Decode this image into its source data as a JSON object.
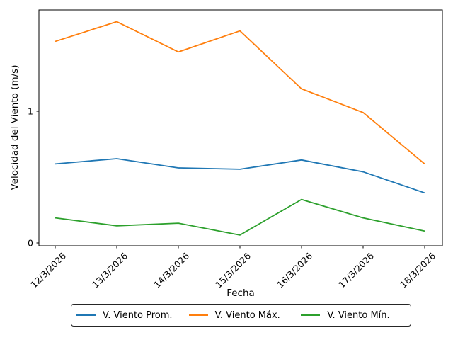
{
  "chart_data": {
    "type": "line",
    "title": "",
    "xlabel": "Fecha",
    "ylabel": "Velocidad del Viento (m/s)",
    "categories": [
      "12/3/2026",
      "13/3/2026",
      "14/3/2026",
      "15/3/2026",
      "16/3/2026",
      "17/3/2026",
      "18/3/2026"
    ],
    "series": [
      {
        "name": "V. Viento Prom.",
        "color": "#1f77b4",
        "values": [
          0.6,
          0.64,
          0.57,
          0.56,
          0.63,
          0.54,
          0.38
        ]
      },
      {
        "name": "V. Viento Máx.",
        "color": "#ff7f0e",
        "values": [
          1.53,
          1.68,
          1.45,
          1.61,
          1.17,
          0.99,
          0.6
        ]
      },
      {
        "name": "V. Viento Mín.",
        "color": "#2ca02c",
        "values": [
          0.19,
          0.13,
          0.15,
          0.06,
          0.33,
          0.19,
          0.09
        ]
      }
    ],
    "yticks": [
      "0",
      "1"
    ],
    "ylim": [
      -0.02,
      1.77
    ],
    "grid": false,
    "legend_position": "bottom-center",
    "x_tick_rotation": 45,
    "axis_color": "#000000"
  }
}
